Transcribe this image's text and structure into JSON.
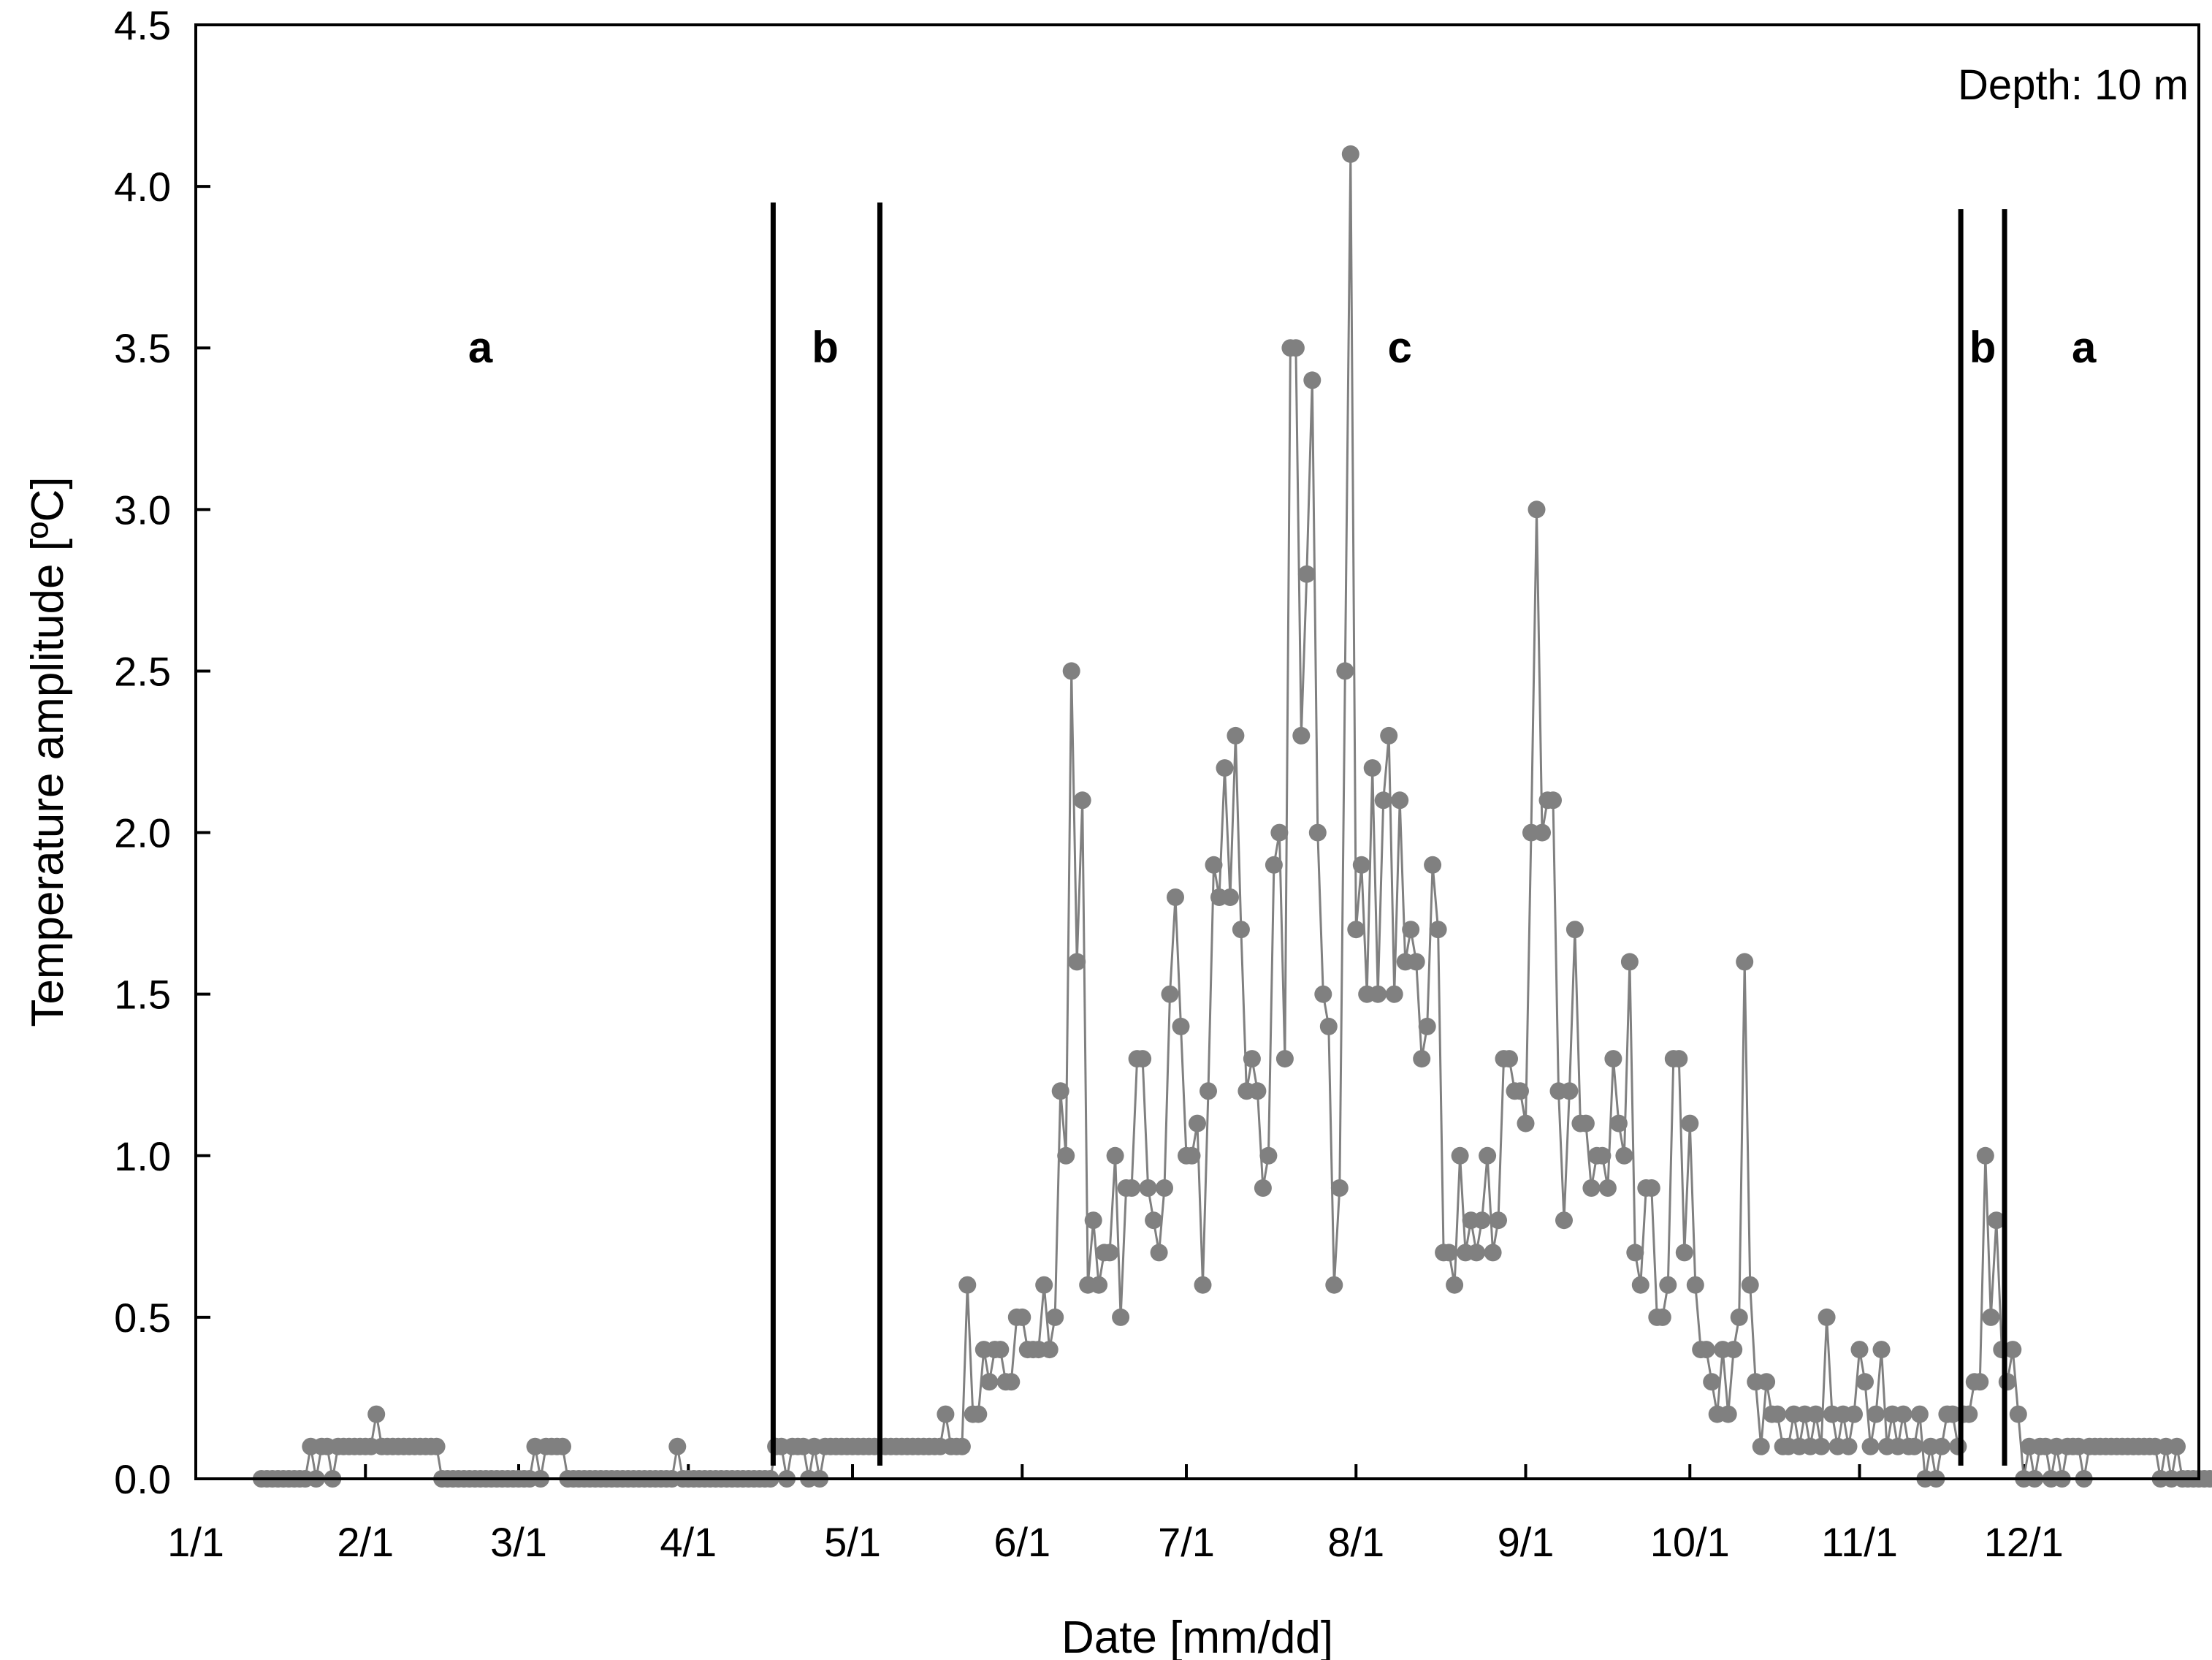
{
  "chart_data": {
    "type": "line",
    "title": "",
    "xlabel": "Date [mm/dd]",
    "ylabel": "Temperature amplitude [ºC]",
    "annotation": "Depth: 10 m",
    "xlim": [
      0,
      366
    ],
    "ylim": [
      0,
      4.5
    ],
    "grid": false,
    "x_ticks": [
      {
        "day": 0,
        "label": "1/1"
      },
      {
        "day": 31,
        "label": "2/1"
      },
      {
        "day": 59,
        "label": "3/1"
      },
      {
        "day": 90,
        "label": "4/1"
      },
      {
        "day": 120,
        "label": "5/1"
      },
      {
        "day": 151,
        "label": "6/1"
      },
      {
        "day": 181,
        "label": "7/1"
      },
      {
        "day": 212,
        "label": "8/1"
      },
      {
        "day": 243,
        "label": "9/1"
      },
      {
        "day": 273,
        "label": "10/1"
      },
      {
        "day": 304,
        "label": "11/1"
      },
      {
        "day": 334,
        "label": "12/1"
      }
    ],
    "y_ticks": [
      "0.0",
      "0.5",
      "1.0",
      "1.5",
      "2.0",
      "2.5",
      "3.0",
      "3.5",
      "4.0",
      "4.5"
    ],
    "boundaries": [
      {
        "day": 105.5,
        "top": 3.95
      },
      {
        "day": 125,
        "top": 3.95
      },
      {
        "day": 322.5,
        "top": 3.93
      },
      {
        "day": 330.5,
        "top": 3.93
      }
    ],
    "regions": [
      {
        "label": "a",
        "day": 52,
        "y": 3.5
      },
      {
        "label": "b",
        "day": 115,
        "y": 3.5
      },
      {
        "label": "c",
        "day": 220,
        "y": 3.5
      },
      {
        "label": "b",
        "day": 326.5,
        "y": 3.5
      },
      {
        "label": "a",
        "day": 345,
        "y": 3.5
      }
    ],
    "series_color": "#808080",
    "series": [
      {
        "start_day": 12,
        "values": [
          0,
          0,
          0,
          0,
          0,
          0,
          0,
          0,
          0,
          0.1,
          0,
          0.1,
          0.1,
          0,
          0.1,
          0.1,
          0.1,
          0.1,
          0.1,
          0.1,
          0.1,
          0.2,
          0.1,
          0.1,
          0.1,
          0.1,
          0.1,
          0.1,
          0.1,
          0.1,
          0.1,
          0.1,
          0.1,
          0,
          0,
          0,
          0,
          0,
          0,
          0,
          0,
          0,
          0,
          0,
          0,
          0,
          0,
          0,
          0,
          0,
          0.1,
          0,
          0.1,
          0.1,
          0.1,
          0.1,
          0,
          0,
          0,
          0,
          0,
          0,
          0,
          0,
          0,
          0,
          0,
          0,
          0,
          0,
          0,
          0,
          0,
          0,
          0,
          0,
          0.1,
          0,
          0,
          0,
          0,
          0,
          0,
          0,
          0,
          0,
          0,
          0,
          0,
          0,
          0,
          0,
          0,
          0,
          0.1,
          0.1,
          0,
          0.1,
          0.1,
          0.1,
          0,
          0.1,
          0,
          0.1,
          0.1,
          0.1,
          0.1,
          0.1,
          0.1,
          0.1,
          0.1,
          0.1,
          0.1,
          0.1,
          0.1,
          0.1,
          0.1,
          0.1,
          0.1,
          0.1,
          0.1,
          0.1,
          0.1,
          0.1,
          0.1,
          0.2,
          0.1,
          0.1,
          0.1,
          0.6,
          0.2,
          0.2,
          0.4,
          0.3,
          0.4,
          0.4,
          0.3,
          0.3,
          0.5,
          0.5,
          0.4,
          0.4,
          0.4,
          0.6,
          0.4,
          0.5,
          1.2,
          1.0,
          2.5,
          1.6,
          2.1,
          0.6,
          0.8,
          0.6,
          0.7,
          0.7,
          1.0,
          0.5,
          0.9,
          0.9,
          1.3,
          1.3,
          0.9,
          0.8,
          0.7,
          0.9,
          1.5,
          1.8,
          1.4,
          1.0,
          1.0,
          1.1,
          0.6,
          1.2,
          1.9,
          1.8,
          2.2,
          1.8,
          2.3,
          1.7,
          1.2,
          1.3,
          1.2,
          0.9,
          1.0,
          1.9,
          2.0,
          1.3,
          3.5,
          3.5,
          2.3,
          2.8,
          3.4,
          2.0,
          1.5,
          1.4,
          0.6,
          0.9,
          2.5,
          4.1,
          1.7,
          1.9,
          1.5,
          2.2,
          1.5,
          2.1,
          2.3,
          1.5,
          2.1,
          1.6,
          1.7,
          1.6,
          1.3,
          1.4,
          1.9,
          1.7,
          0.7,
          0.7,
          0.6,
          1.0,
          0.7,
          0.8,
          0.7,
          0.8,
          1.0,
          0.7,
          0.8,
          1.3,
          1.3,
          1.2,
          1.2,
          1.1,
          2.0,
          3.0,
          2.0,
          2.1,
          2.1,
          1.2,
          0.8,
          1.2,
          1.7,
          1.1,
          1.1,
          0.9,
          1.0,
          1.0,
          0.9,
          1.3,
          1.1,
          1.0,
          1.6,
          0.7,
          0.6,
          0.9,
          0.9,
          0.5,
          0.5,
          0.6,
          1.3,
          1.3,
          0.7,
          1.1,
          0.6,
          0.4,
          0.4,
          0.3,
          0.2,
          0.4,
          0.2,
          0.4,
          0.5,
          1.6,
          0.6,
          0.3,
          0.1,
          0.3,
          0.2,
          0.2,
          0.1,
          0.1,
          0.2,
          0.1,
          0.2,
          0.1,
          0.2,
          0.1,
          0.5,
          0.2,
          0.1,
          0.2,
          0.1,
          0.2,
          0.4,
          0.3,
          0.1,
          0.2,
          0.4,
          0.1,
          0.2,
          0.1,
          0.2,
          0.1,
          0.1,
          0.2,
          0,
          0.1,
          0,
          0.1,
          0.2,
          0.2,
          0.1,
          0.2,
          0.2,
          0.3,
          0.3,
          1.0,
          0.5,
          0.8,
          0.4,
          0.3,
          0.4,
          0.2,
          0,
          0.1,
          0,
          0.1,
          0.1,
          0,
          0.1,
          0,
          0.1,
          0.1,
          0.1,
          0,
          0.1,
          0.1,
          0.1,
          0.1,
          0.1,
          0.1,
          0.1,
          0.1,
          0.1,
          0.1,
          0.1,
          0.1,
          0.1,
          0,
          0.1,
          0,
          0.1,
          0,
          0,
          0,
          0,
          0,
          0,
          0,
          0.1,
          0.1,
          0.1,
          0.1,
          0.1,
          0.2,
          0
        ]
      }
    ]
  }
}
